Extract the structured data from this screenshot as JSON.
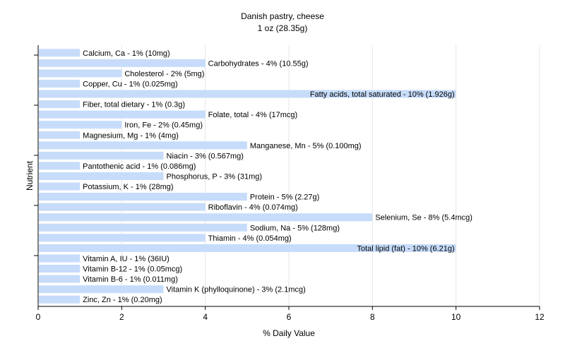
{
  "chart_data": {
    "type": "bar",
    "orientation": "horizontal",
    "title": "Danish pastry, cheese",
    "subtitle": "1 oz (28.35g)",
    "xlabel": "% Daily Value",
    "ylabel": "Nutrient",
    "xlim": [
      0,
      12
    ],
    "xticks": [
      "0",
      "2",
      "4",
      "6",
      "8",
      "10",
      "12"
    ],
    "grid": true,
    "bar_color": "#c6dcfa",
    "categories": [
      "Calcium, Ca",
      "Carbohydrates",
      "Cholesterol",
      "Copper, Cu",
      "Fatty acids, total saturated",
      "Fiber, total dietary",
      "Folate, total",
      "Iron, Fe",
      "Magnesium, Mg",
      "Manganese, Mn",
      "Niacin",
      "Pantothenic acid",
      "Phosphorus, P",
      "Potassium, K",
      "Protein",
      "Riboflavin",
      "Selenium, Se",
      "Sodium, Na",
      "Thiamin",
      "Total lipid (fat)",
      "Vitamin A, IU",
      "Vitamin B-12",
      "Vitamin B-6",
      "Vitamin K (phylloquinone)",
      "Zinc, Zn"
    ],
    "values": [
      1,
      4,
      2,
      1,
      10,
      1,
      4,
      2,
      1,
      5,
      3,
      1,
      3,
      1,
      5,
      4,
      8,
      5,
      4,
      10,
      1,
      1,
      1,
      3,
      1
    ],
    "data_labels": [
      "Calcium, Ca - 1% (10mg)",
      "Carbohydrates - 4% (10.55g)",
      "Cholesterol - 2% (5mg)",
      "Copper, Cu - 1% (0.025mg)",
      "Fatty acids, total saturated - 10% (1.926g)",
      "Fiber, total dietary - 1% (0.3g)",
      "Folate, total - 4% (17mcg)",
      "Iron, Fe - 2% (0.45mg)",
      "Magnesium, Mg - 1% (4mg)",
      "Manganese, Mn - 5% (0.100mg)",
      "Niacin - 3% (0.567mg)",
      "Pantothenic acid - 1% (0.086mg)",
      "Phosphorus, P - 3% (31mg)",
      "Potassium, K - 1% (28mg)",
      "Protein - 5% (2.27g)",
      "Riboflavin - 4% (0.074mg)",
      "Selenium, Se - 8% (5.4mcg)",
      "Sodium, Na - 5% (128mg)",
      "Thiamin - 4% (0.054mg)",
      "Total lipid (fat) - 10% (6.21g)",
      "Vitamin A, IU - 1% (36IU)",
      "Vitamin B-12 - 1% (0.05mcg)",
      "Vitamin B-6 - 1% (0.011mg)",
      "Vitamin K (phylloquinone) - 3% (2.1mcg)",
      "Zinc, Zn - 1% (0.20mg)"
    ]
  }
}
